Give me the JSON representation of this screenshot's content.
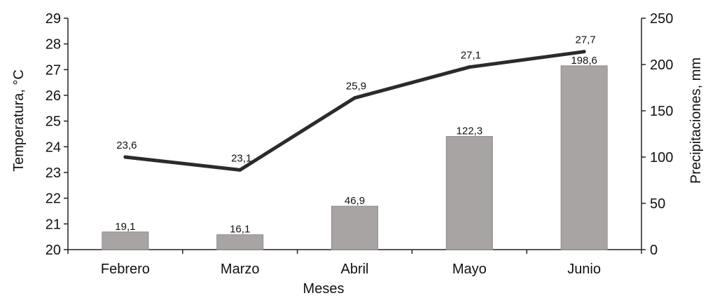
{
  "chart_data": {
    "type": "bar+line",
    "categories": [
      "Febrero",
      "Marzo",
      "Abril",
      "Mayo",
      "Junio"
    ],
    "xlabel": "Meses",
    "ylabel_left": "Temperatura, °C",
    "ylabel_right": "Precipitaciones, mm",
    "ylim_left": [
      20,
      29
    ],
    "ylim_right": [
      0,
      250
    ],
    "left_ticks": [
      20,
      21,
      22,
      23,
      24,
      25,
      26,
      27,
      28,
      29
    ],
    "right_ticks": [
      0,
      50,
      100,
      150,
      200,
      250
    ],
    "grid": false,
    "legend": "none",
    "series": [
      {
        "type": "bar",
        "axis": "right",
        "values": [
          19.1,
          16.1,
          46.9,
          122.3,
          198.6
        ],
        "labels": [
          "19,1",
          "16,1",
          "46,9",
          "122,3",
          "198,6"
        ],
        "color": "#a8a4a3"
      },
      {
        "type": "line",
        "axis": "left",
        "values": [
          23.6,
          23.1,
          25.9,
          27.1,
          27.7
        ],
        "labels": [
          "23,6",
          "23,1",
          "25,9",
          "27,1",
          "27,7"
        ],
        "color": "#2e2a2a"
      }
    ]
  }
}
